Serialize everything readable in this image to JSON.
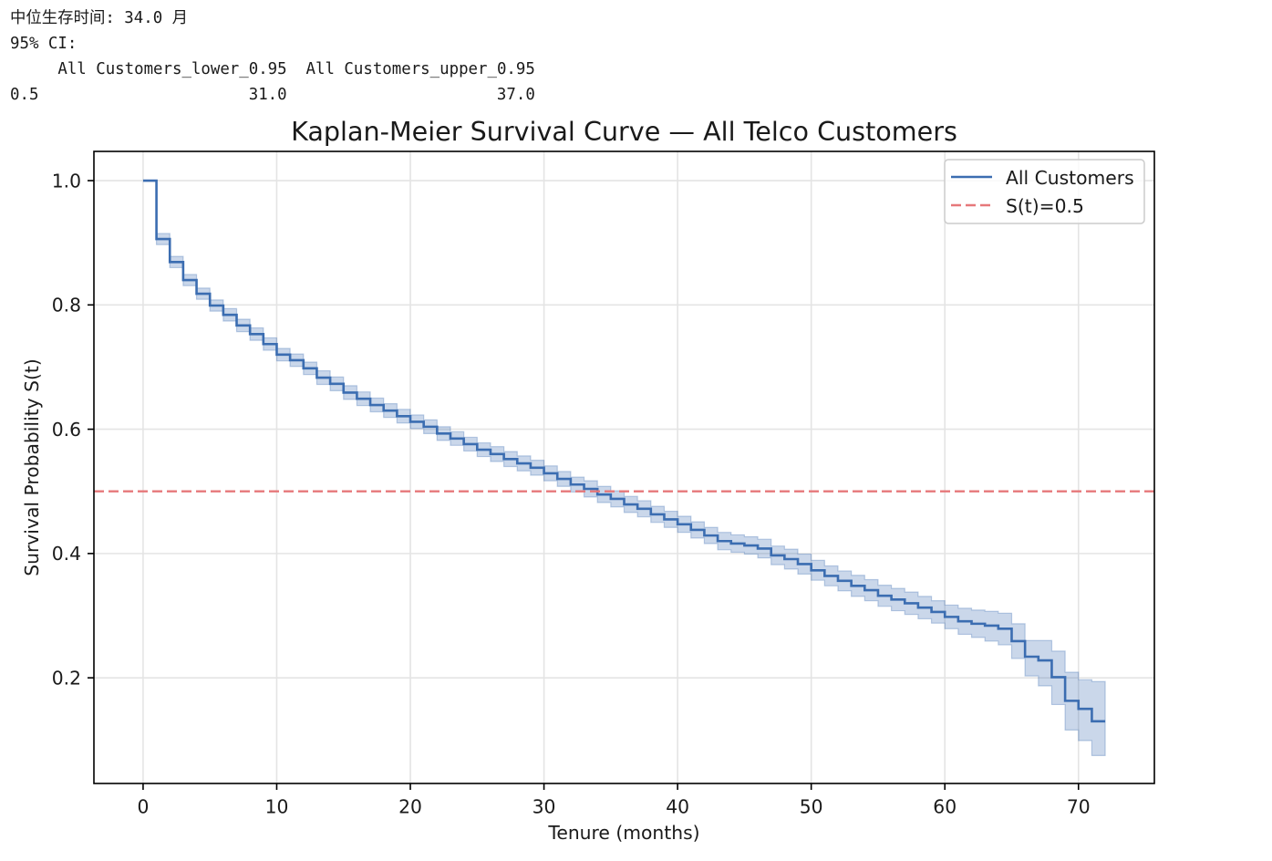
{
  "output": {
    "median_line": "中位生存时间: 34.0 月",
    "ci_heading": "95% CI:",
    "ci_table": {
      "columns": [
        "All Customers_lower_0.95",
        "All Customers_upper_0.95"
      ],
      "rows": [
        {
          "index": "0.5",
          "cells": [
            "31.0",
            "37.0"
          ]
        }
      ]
    }
  },
  "chart_data": {
    "type": "line",
    "step": true,
    "title": "Kaplan-Meier Survival Curve — All Telco Customers",
    "xlabel": "Tenure (months)",
    "ylabel": "Survival Probability S(t)",
    "xlim": [
      -3.68,
      75.68
    ],
    "ylim": [
      0.03,
      1.047
    ],
    "x_ticks": [
      "0",
      "10",
      "20",
      "30",
      "40",
      "50",
      "60",
      "70"
    ],
    "y_ticks": [
      "0.2",
      "0.4",
      "0.6",
      "0.8",
      "1.0"
    ],
    "grid": true,
    "legend": "top-right",
    "series": [
      {
        "name": "All Customers",
        "color": "#3b6db1",
        "x": [
          0,
          1,
          2,
          3,
          4,
          5,
          6,
          7,
          8,
          9,
          10,
          11,
          12,
          13,
          14,
          15,
          16,
          17,
          18,
          19,
          20,
          21,
          22,
          23,
          24,
          25,
          26,
          27,
          28,
          29,
          30,
          31,
          32,
          33,
          34,
          35,
          36,
          37,
          38,
          39,
          40,
          41,
          42,
          43,
          44,
          45,
          46,
          47,
          48,
          49,
          50,
          51,
          52,
          53,
          54,
          55,
          56,
          57,
          58,
          59,
          60,
          61,
          62,
          63,
          64,
          65,
          66,
          67,
          68,
          69,
          70,
          71,
          72
        ],
        "values": [
          1.0,
          0.906,
          0.869,
          0.84,
          0.818,
          0.799,
          0.784,
          0.767,
          0.753,
          0.737,
          0.72,
          0.711,
          0.698,
          0.683,
          0.673,
          0.659,
          0.649,
          0.639,
          0.63,
          0.621,
          0.612,
          0.604,
          0.593,
          0.585,
          0.576,
          0.567,
          0.56,
          0.552,
          0.545,
          0.538,
          0.529,
          0.52,
          0.511,
          0.504,
          0.495,
          0.488,
          0.479,
          0.472,
          0.463,
          0.455,
          0.447,
          0.438,
          0.429,
          0.42,
          0.416,
          0.413,
          0.408,
          0.397,
          0.391,
          0.383,
          0.373,
          0.364,
          0.356,
          0.348,
          0.341,
          0.332,
          0.326,
          0.32,
          0.313,
          0.306,
          0.298,
          0.291,
          0.287,
          0.284,
          0.279,
          0.259,
          0.234,
          0.228,
          0.201,
          0.163,
          0.15,
          0.13,
          0.13
        ],
        "ci_lower": [
          1.0,
          0.897,
          0.86,
          0.831,
          0.809,
          0.79,
          0.774,
          0.757,
          0.743,
          0.727,
          0.71,
          0.701,
          0.688,
          0.672,
          0.662,
          0.648,
          0.638,
          0.628,
          0.619,
          0.61,
          0.601,
          0.593,
          0.582,
          0.574,
          0.565,
          0.556,
          0.548,
          0.54,
          0.533,
          0.526,
          0.517,
          0.508,
          0.499,
          0.491,
          0.482,
          0.475,
          0.466,
          0.459,
          0.45,
          0.442,
          0.434,
          0.425,
          0.416,
          0.406,
          0.402,
          0.399,
          0.393,
          0.382,
          0.375,
          0.367,
          0.357,
          0.348,
          0.34,
          0.331,
          0.324,
          0.315,
          0.308,
          0.302,
          0.295,
          0.288,
          0.279,
          0.27,
          0.265,
          0.259,
          0.253,
          0.231,
          0.203,
          0.187,
          0.157,
          0.116,
          0.099,
          0.075,
          0.075
        ],
        "ci_upper": [
          1.0,
          0.915,
          0.878,
          0.849,
          0.827,
          0.808,
          0.794,
          0.777,
          0.763,
          0.747,
          0.73,
          0.721,
          0.708,
          0.694,
          0.684,
          0.67,
          0.66,
          0.65,
          0.641,
          0.632,
          0.623,
          0.615,
          0.604,
          0.596,
          0.587,
          0.578,
          0.572,
          0.564,
          0.557,
          0.55,
          0.541,
          0.532,
          0.523,
          0.517,
          0.508,
          0.501,
          0.492,
          0.485,
          0.476,
          0.468,
          0.46,
          0.451,
          0.442,
          0.434,
          0.43,
          0.427,
          0.423,
          0.412,
          0.407,
          0.399,
          0.389,
          0.38,
          0.372,
          0.365,
          0.358,
          0.349,
          0.344,
          0.338,
          0.331,
          0.324,
          0.317,
          0.312,
          0.309,
          0.307,
          0.304,
          0.287,
          0.26,
          0.26,
          0.243,
          0.209,
          0.197,
          0.194,
          0.194
        ]
      },
      {
        "name": "S(t)=0.5",
        "color": "#e6787a",
        "y": 0.5,
        "dashed": true
      }
    ]
  }
}
